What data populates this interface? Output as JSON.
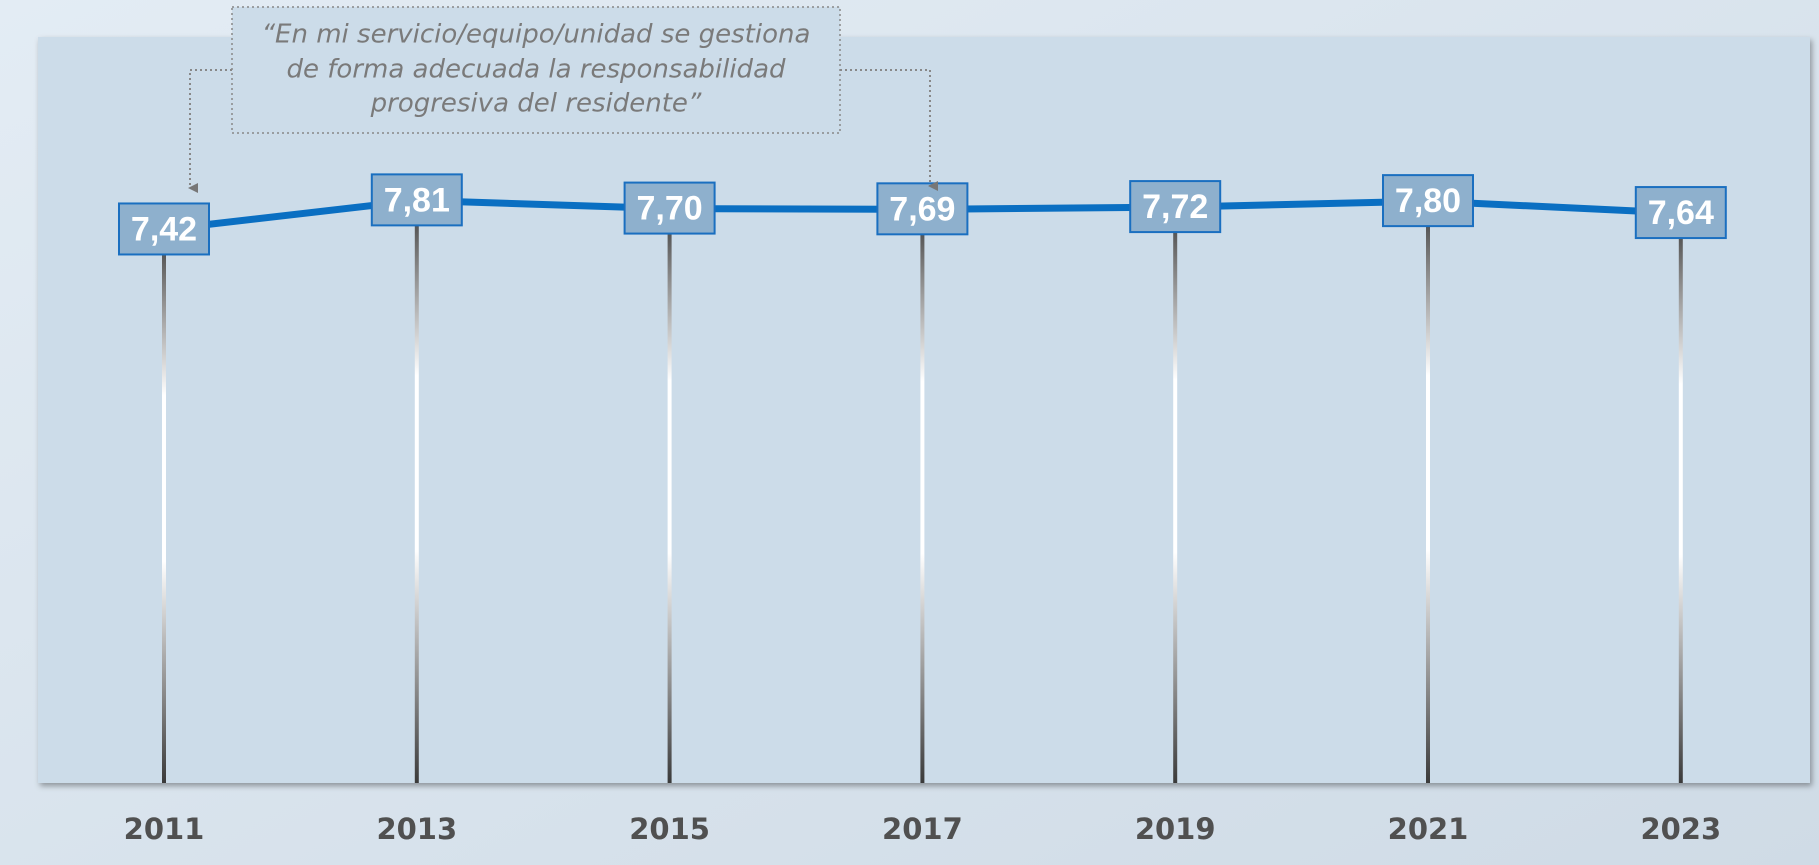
{
  "chart_data": {
    "type": "line",
    "annotation": [
      "“En mi servicio/equipo/unidad se gestiona",
      "de forma adecuada la responsabilidad",
      "progresiva del residente”"
    ],
    "categories": [
      "2011",
      "2013",
      "2015",
      "2017",
      "2019",
      "2021",
      "2023"
    ],
    "series": [
      {
        "name": null,
        "color": "#0a6fc2",
        "values": [
          7.42,
          7.81,
          7.7,
          7.69,
          7.72,
          7.8,
          7.64
        ],
        "value_labels": [
          "7,42",
          "7,81",
          "7,70",
          "7,69",
          "7,72",
          "7,80",
          "7,64"
        ]
      }
    ],
    "ylim": [
      0,
      10
    ]
  }
}
